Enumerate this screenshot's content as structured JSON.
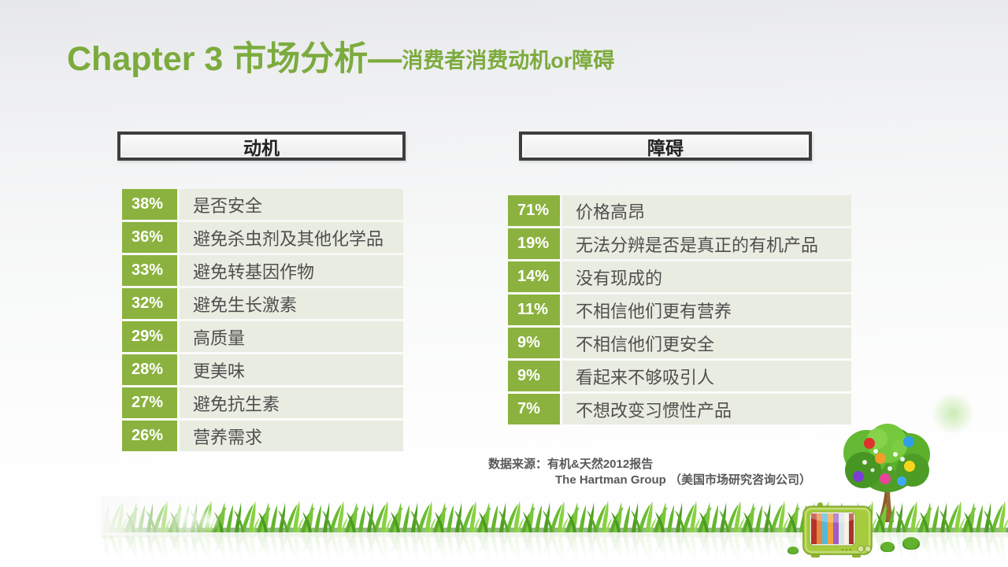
{
  "slide": {
    "title_main": "Chapter 3 市场分析—",
    "title_sub": "消费者消费动机or障碍",
    "source_line1": "数据来源：有机&天然2012报告",
    "source_line2": "The Hartman Group （美国市场研究咨询公司）"
  },
  "motivation_table": {
    "header": "动机",
    "rows": [
      {
        "pct": "38%",
        "label": "是否安全"
      },
      {
        "pct": "36%",
        "label": "避免杀虫剂及其他化学品"
      },
      {
        "pct": "33%",
        "label": "避免转基因作物"
      },
      {
        "pct": "32%",
        "label": "避免生长激素"
      },
      {
        "pct": "29%",
        "label": "高质量"
      },
      {
        "pct": "28%",
        "label": "更美味"
      },
      {
        "pct": "27%",
        "label": "避免抗生素"
      },
      {
        "pct": "26%",
        "label": "营养需求"
      }
    ]
  },
  "barrier_table": {
    "header": "障碍",
    "rows": [
      {
        "pct": "71%",
        "label": "价格高昂"
      },
      {
        "pct": "19%",
        "label": "无法分辨是否是真正的有机产品"
      },
      {
        "pct": "14%",
        "label": "没有现成的"
      },
      {
        "pct": "11%",
        "label": "不相信他们更有营养"
      },
      {
        "pct": "9%",
        "label": "不相信他们更安全"
      },
      {
        "pct": "9%",
        "label": "看起来不够吸引人"
      },
      {
        "pct": "7%",
        "label": "不想改变习惯性产品"
      }
    ]
  },
  "decorations": {
    "grass": "grass-strip",
    "tree": "fruit-tree-clipart",
    "tv": "green-retro-tv-clipart"
  },
  "colors": {
    "accent_green": "#8bb23e",
    "title_green": "#7cab3d",
    "row_bg": "#e9ece0",
    "header_border": "#3e3e3e",
    "text_dark": "#4f4f4f",
    "source_text": "#595959"
  }
}
